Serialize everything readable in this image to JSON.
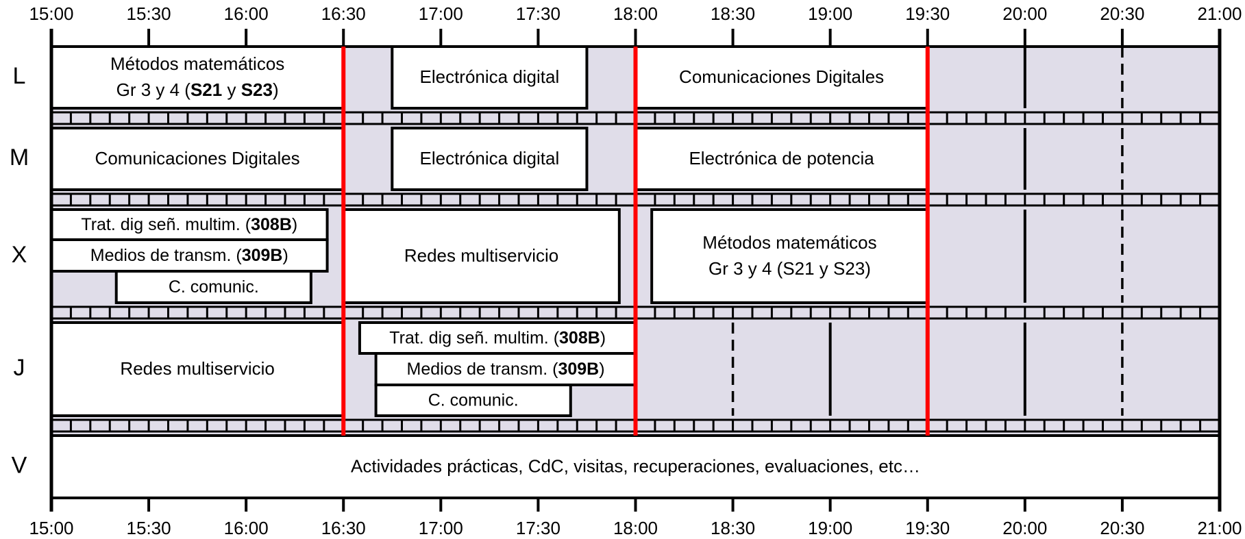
{
  "time_labels": [
    "15:00",
    "15:30",
    "16:00",
    "16:30",
    "17:00",
    "17:30",
    "18:00",
    "18:30",
    "19:00",
    "19:30",
    "20:00",
    "20:30",
    "21:00"
  ],
  "colors": {
    "free_slot": "#e0dde9",
    "grid": "#000000",
    "highlight_line": "#ff0000",
    "block": "#ffffff"
  },
  "highlight_times": [
    "16:30",
    "18:00",
    "19:30"
  ],
  "days": [
    {
      "key": "L",
      "label": "L",
      "blocks": [
        {
          "start": "15:00",
          "end": "16:30",
          "lines": [
            [
              {
                "t": "Métodos matemáticos"
              }
            ],
            [
              {
                "t": "Gr 3 y 4 ("
              },
              {
                "t": "S21",
                "b": true
              },
              {
                "t": " y "
              },
              {
                "t": "S23",
                "b": true
              },
              {
                "t": ")"
              }
            ]
          ]
        },
        {
          "start": "16:45",
          "end": "17:45",
          "lines": [
            [
              {
                "t": "Electrónica digital"
              }
            ]
          ]
        },
        {
          "start": "18:00",
          "end": "19:30",
          "lines": [
            [
              {
                "t": "Comunicaciones Digitales"
              }
            ]
          ]
        }
      ]
    },
    {
      "key": "M",
      "label": "M",
      "blocks": [
        {
          "start": "15:00",
          "end": "16:30",
          "lines": [
            [
              {
                "t": "Comunicaciones Digitales"
              }
            ]
          ]
        },
        {
          "start": "16:45",
          "end": "17:45",
          "lines": [
            [
              {
                "t": "Electrónica digital"
              }
            ]
          ]
        },
        {
          "start": "18:00",
          "end": "19:30",
          "lines": [
            [
              {
                "t": "Electrónica de potencia"
              }
            ]
          ]
        }
      ]
    },
    {
      "key": "X",
      "label": "X",
      "blocks": [
        {
          "start": "15:00",
          "end": "16:25",
          "sub": 0,
          "lines": [
            [
              {
                "t": "Trat. dig señ. multim. ("
              },
              {
                "t": "308B",
                "b": true
              },
              {
                "t": ")"
              }
            ]
          ]
        },
        {
          "start": "15:00",
          "end": "16:25",
          "sub": 1,
          "lines": [
            [
              {
                "t": "Medios de transm. ("
              },
              {
                "t": "309B",
                "b": true
              },
              {
                "t": ")"
              }
            ]
          ]
        },
        {
          "start": "15:20",
          "end": "16:20",
          "sub": 2,
          "lines": [
            [
              {
                "t": "C. comunic."
              }
            ]
          ]
        },
        {
          "start": "16:30",
          "end": "17:55",
          "lines": [
            [
              {
                "t": "Redes multiservicio"
              }
            ]
          ]
        },
        {
          "start": "18:05",
          "end": "19:30",
          "lines": [
            [
              {
                "t": "Métodos matemáticos"
              }
            ],
            [
              {
                "t": "Gr 3 y 4 (S21 y S23)"
              }
            ]
          ]
        }
      ]
    },
    {
      "key": "J",
      "label": "J",
      "blocks": [
        {
          "start": "15:00",
          "end": "16:30",
          "lines": [
            [
              {
                "t": "Redes multiservicio"
              }
            ]
          ]
        },
        {
          "start": "16:35",
          "end": "18:00",
          "sub": 0,
          "lines": [
            [
              {
                "t": "Trat. dig señ. multim. ("
              },
              {
                "t": "308B",
                "b": true
              },
              {
                "t": ")"
              }
            ]
          ]
        },
        {
          "start": "16:40",
          "end": "18:00",
          "sub": 1,
          "lines": [
            [
              {
                "t": "Medios de transm. ("
              },
              {
                "t": "309B",
                "b": true
              },
              {
                "t": ")"
              }
            ]
          ]
        },
        {
          "start": "16:40",
          "end": "17:40",
          "sub": 2,
          "lines": [
            [
              {
                "t": "C. comunic."
              }
            ]
          ]
        }
      ]
    },
    {
      "key": "V",
      "label": "V",
      "blocks": [
        {
          "start": "15:00",
          "end": "21:00",
          "lines": [
            [
              {
                "t": "Actividades prácticas, CdC, visitas, recuperaciones, evaluaciones, etc…"
              }
            ]
          ]
        }
      ]
    }
  ]
}
